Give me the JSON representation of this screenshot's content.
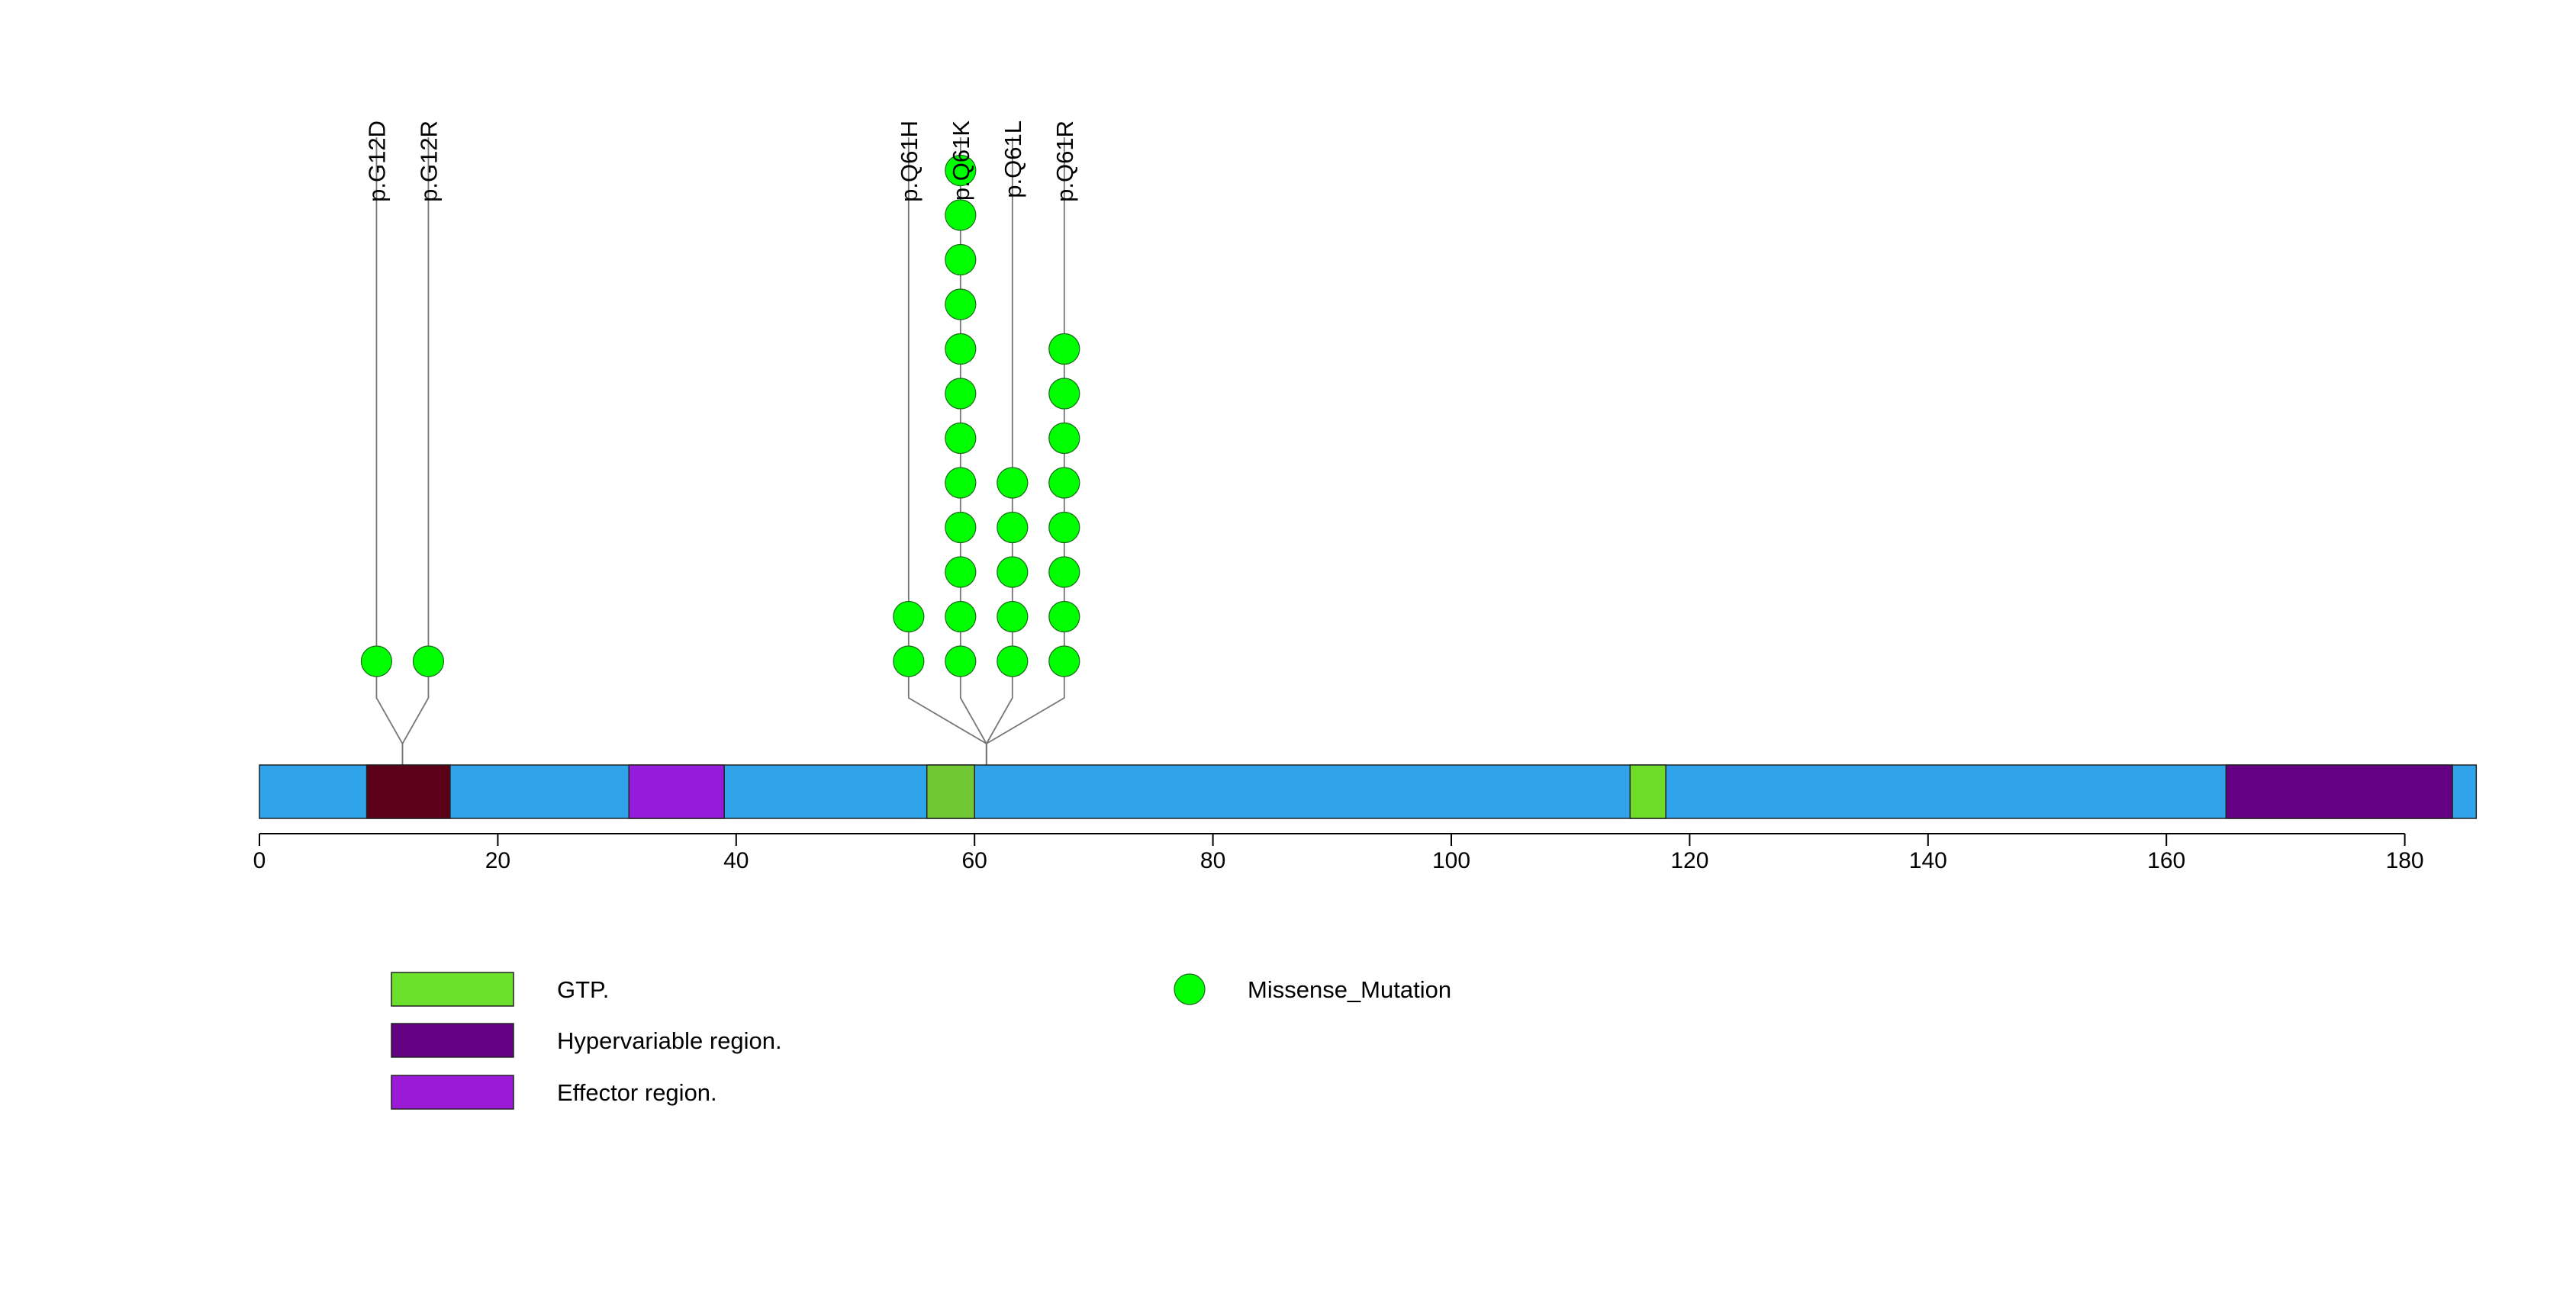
{
  "chart_data": {
    "type": "lollipop",
    "title": "",
    "xlabel": "",
    "ylabel": "",
    "protein_length": 186,
    "x_ticks": [
      0,
      20,
      40,
      60,
      80,
      100,
      120,
      140,
      160,
      180
    ],
    "backbone_color": "#2fa4ea",
    "domains": [
      {
        "start": 9,
        "end": 16,
        "color": "#5c0018",
        "legend": ""
      },
      {
        "start": 31,
        "end": 39,
        "color": "#961cdc",
        "legend": "Effector region."
      },
      {
        "start": 56,
        "end": 60,
        "color": "#70c932",
        "legend": "GTP."
      },
      {
        "start": 115,
        "end": 118,
        "color": "#70dc2a",
        "legend": ""
      },
      {
        "start": 165,
        "end": 184,
        "color": "#640082",
        "legend": "Hypervariable region."
      }
    ],
    "mutation_type": "Missense_Mutation",
    "mutation_color": "#00ff00",
    "mutations": [
      {
        "label": "p.G12D",
        "position": 12,
        "count": 1
      },
      {
        "label": "p.G12R",
        "position": 12,
        "count": 1
      },
      {
        "label": "p.Q61H",
        "position": 61,
        "count": 2
      },
      {
        "label": "p.Q61K",
        "position": 61,
        "count": 12
      },
      {
        "label": "p.Q61L",
        "position": 61,
        "count": 5
      },
      {
        "label": "p.Q61R",
        "position": 61,
        "count": 8
      }
    ],
    "legend": {
      "domains": [
        {
          "label": "GTP.",
          "color": "#6ce12c"
        },
        {
          "label": "Hypervariable region.",
          "color": "#640082"
        },
        {
          "label": "Effector region.",
          "color": "#9a1ad8"
        }
      ],
      "mutation_label": "Missense_Mutation"
    }
  }
}
